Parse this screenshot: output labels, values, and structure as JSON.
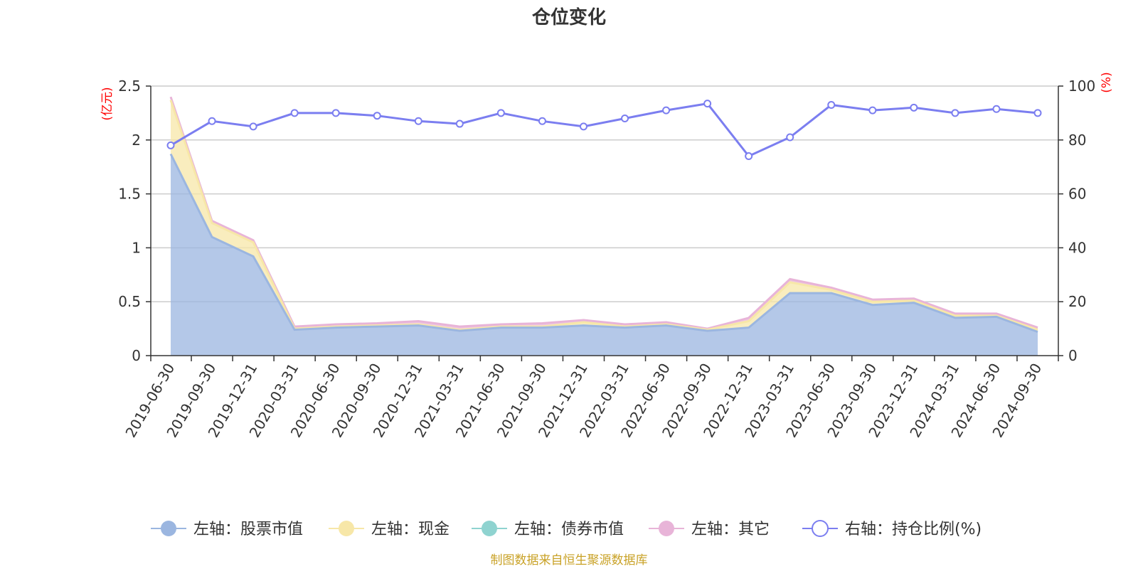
{
  "chart_data": {
    "type": "area",
    "title": "仓位变化",
    "left_axis_unit": "(亿元)",
    "right_axis_unit": "(%)",
    "categories": [
      "2019-06-30",
      "2019-09-30",
      "2019-12-31",
      "2020-03-31",
      "2020-06-30",
      "2020-09-30",
      "2020-12-31",
      "2021-03-31",
      "2021-06-30",
      "2021-09-30",
      "2021-12-31",
      "2022-03-31",
      "2022-06-30",
      "2022-09-30",
      "2022-12-31",
      "2023-03-31",
      "2023-06-30",
      "2023-09-30",
      "2023-12-31",
      "2024-03-31",
      "2024-06-30",
      "2024-09-30"
    ],
    "left_ylim": [
      0,
      2.5
    ],
    "left_ticks": [
      "0",
      "0.5",
      "1",
      "1.5",
      "2",
      "2.5"
    ],
    "right_ylim": [
      0,
      100
    ],
    "right_ticks": [
      "0",
      "20",
      "40",
      "60",
      "80",
      "100"
    ],
    "grid": true,
    "legend_position": "bottom",
    "series": [
      {
        "name": "左轴：股票市值",
        "axis": "left",
        "type": "area",
        "color": "#9bb6e0",
        "values": [
          1.87,
          1.1,
          0.92,
          0.24,
          0.26,
          0.27,
          0.28,
          0.23,
          0.26,
          0.26,
          0.28,
          0.26,
          0.28,
          0.23,
          0.26,
          0.58,
          0.58,
          0.47,
          0.49,
          0.35,
          0.36,
          0.22
        ]
      },
      {
        "name": "左轴：现金",
        "axis": "left",
        "type": "area",
        "color": "#f7e7a8",
        "values": [
          0.5,
          0.13,
          0.13,
          0.01,
          0.01,
          0.01,
          0.01,
          0.01,
          0.01,
          0.01,
          0.03,
          0.01,
          0.01,
          0.01,
          0.06,
          0.1,
          0.03,
          0.03,
          0.02,
          0.02,
          0.01,
          0.02
        ]
      },
      {
        "name": "左轴：债券市值",
        "axis": "left",
        "type": "area",
        "color": "#8fd3d0",
        "values": [
          0,
          0,
          0,
          0,
          0,
          0,
          0,
          0,
          0,
          0,
          0,
          0,
          0,
          0,
          0,
          0,
          0,
          0,
          0,
          0,
          0,
          0
        ]
      },
      {
        "name": "左轴：其它",
        "axis": "left",
        "type": "area",
        "color": "#e8b4d8",
        "values": [
          0.03,
          0.02,
          0.02,
          0.02,
          0.02,
          0.02,
          0.03,
          0.03,
          0.02,
          0.03,
          0.02,
          0.02,
          0.02,
          0.01,
          0.03,
          0.03,
          0.02,
          0.02,
          0.02,
          0.02,
          0.02,
          0.02
        ]
      },
      {
        "name": "右轴：持仓比例(%)",
        "axis": "right",
        "type": "line",
        "color": "#7b7ef0",
        "values": [
          78,
          87,
          85,
          90,
          90,
          89,
          87,
          86,
          90,
          87,
          85,
          88,
          91,
          93.5,
          74,
          81,
          93,
          91,
          92,
          90,
          91.5,
          90
        ]
      }
    ],
    "source_note": "制图数据来自恒生聚源数据库"
  }
}
